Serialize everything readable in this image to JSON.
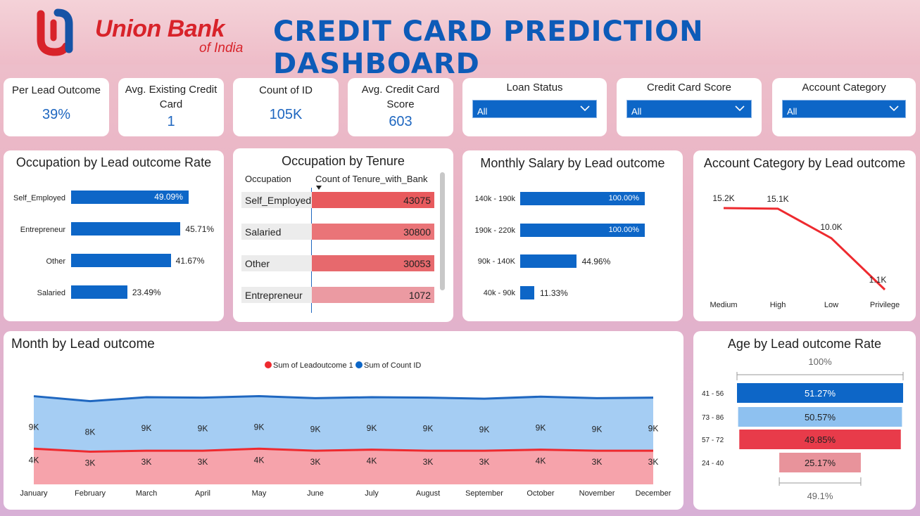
{
  "header": {
    "brand_line1": "Union Bank",
    "brand_line2": "of India",
    "title": "CREDIT CARD PREDICTION DASHBOARD"
  },
  "kpis": [
    {
      "label": "Per Lead Outcome",
      "value": "39%"
    },
    {
      "label": "Avg. Existing Credit Card",
      "value": "1"
    },
    {
      "label": "Count of ID",
      "value": "105K"
    },
    {
      "label": "Avg. Credit Card Score",
      "value": "603"
    }
  ],
  "slicers": [
    {
      "label": "Loan Status",
      "value": "All"
    },
    {
      "label": "Credit Card Score",
      "value": "All"
    },
    {
      "label": "Account Category",
      "value": "All"
    }
  ],
  "colors": {
    "blue": "#0d66c7",
    "red": "#ee2a2f",
    "light_blue": "#8ec1f0",
    "pink": "#e8939b"
  },
  "chart_data": [
    {
      "type": "bar",
      "orientation": "horizontal",
      "title": "Occupation by Lead outcome Rate",
      "categories": [
        "Self_Employed",
        "Entrepreneur",
        "Other",
        "Salaried"
      ],
      "values": [
        49.09,
        45.71,
        41.67,
        23.49
      ],
      "labels": [
        "49.09%",
        "45.71%",
        "41.67%",
        "23.49%"
      ]
    },
    {
      "type": "table",
      "title": "Occupation by Tenure",
      "columns": [
        "Occupation",
        "Count of Tenure_with_Bank"
      ],
      "rows": [
        "Self_Employed",
        "Salaried",
        "Other",
        "Entrepreneur"
      ],
      "values": [
        43075,
        30800,
        30053,
        1072
      ],
      "labels": [
        "43075",
        "30800",
        "30053",
        "1072"
      ]
    },
    {
      "type": "bar",
      "orientation": "horizontal",
      "title": "Monthly Salary by Lead outcome",
      "categories": [
        "140k - 190k",
        "190k - 220k",
        "90k - 140K",
        "40k - 90k"
      ],
      "values": [
        100.0,
        100.0,
        44.96,
        11.33
      ],
      "labels": [
        "100.00%",
        "100.00%",
        "44.96%",
        "11.33%"
      ]
    },
    {
      "type": "line",
      "title": "Account Category by Lead outcome",
      "categories": [
        "Medium",
        "High",
        "Low",
        "Privilege"
      ],
      "values": [
        15.2,
        15.1,
        10.0,
        1.1
      ],
      "labels": [
        "15.2K",
        "15.1K",
        "10.0K",
        "1.1K"
      ]
    },
    {
      "type": "area",
      "title": "Month by Lead outcome",
      "categories": [
        "January",
        "February",
        "March",
        "April",
        "May",
        "June",
        "July",
        "August",
        "September",
        "October",
        "November",
        "December"
      ],
      "series": [
        {
          "name": "Sum of Leadoutcome 1",
          "values": [
            3.6,
            3.3,
            3.4,
            3.4,
            3.6,
            3.4,
            3.5,
            3.4,
            3.4,
            3.5,
            3.4,
            3.4
          ],
          "labels": [
            "4K",
            "3K",
            "3K",
            "3K",
            "4K",
            "3K",
            "4K",
            "3K",
            "3K",
            "4K",
            "3K",
            "3K"
          ]
        },
        {
          "name": "Sum of Count ID",
          "values": [
            8.9,
            8.4,
            8.8,
            8.75,
            8.9,
            8.7,
            8.8,
            8.75,
            8.65,
            8.85,
            8.7,
            8.75
          ],
          "labels": [
            "9K",
            "8K",
            "9K",
            "9K",
            "9K",
            "9K",
            "9K",
            "9K",
            "9K",
            "9K",
            "9K",
            "9K"
          ]
        }
      ]
    },
    {
      "type": "bar",
      "orientation": "funnel",
      "title": "Age by Lead outcome Rate",
      "categories": [
        "41 - 56",
        "73 - 86",
        "57 - 72",
        "24 - 40"
      ],
      "values": [
        51.27,
        50.57,
        49.85,
        25.17
      ],
      "labels": [
        "51.27%",
        "50.57%",
        "49.85%",
        "25.17%"
      ],
      "top_label": "100%",
      "bottom_label": "49.1%"
    }
  ]
}
